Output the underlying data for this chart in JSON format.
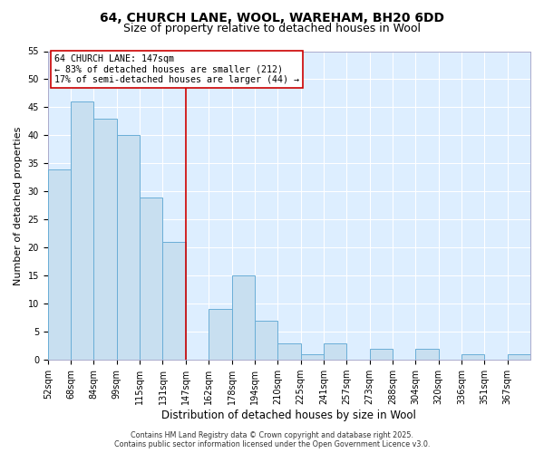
{
  "title": "64, CHURCH LANE, WOOL, WAREHAM, BH20 6DD",
  "subtitle": "Size of property relative to detached houses in Wool",
  "xlabel": "Distribution of detached houses by size in Wool",
  "ylabel": "Number of detached properties",
  "bar_labels": [
    "52sqm",
    "68sqm",
    "84sqm",
    "99sqm",
    "115sqm",
    "131sqm",
    "147sqm",
    "162sqm",
    "178sqm",
    "194sqm",
    "210sqm",
    "225sqm",
    "241sqm",
    "257sqm",
    "273sqm",
    "288sqm",
    "304sqm",
    "320sqm",
    "336sqm",
    "351sqm",
    "367sqm"
  ],
  "bar_heights": [
    34,
    46,
    43,
    40,
    29,
    21,
    0,
    9,
    15,
    7,
    3,
    1,
    3,
    0,
    2,
    0,
    2,
    0,
    1,
    0,
    1
  ],
  "bar_color": "#c8dff0",
  "bar_edge_color": "#6aaed6",
  "vline_x_index": 6,
  "vline_color": "#cc0000",
  "annotation_line1": "64 CHURCH LANE: 147sqm",
  "annotation_line2": "← 83% of detached houses are smaller (212)",
  "annotation_line3": "17% of semi-detached houses are larger (44) →",
  "annotation_box_color": "#ffffff",
  "annotation_box_edge": "#cc0000",
  "ylim": [
    0,
    55
  ],
  "yticks": [
    0,
    5,
    10,
    15,
    20,
    25,
    30,
    35,
    40,
    45,
    50,
    55
  ],
  "footer_line1": "Contains HM Land Registry data © Crown copyright and database right 2025.",
  "footer_line2": "Contains public sector information licensed under the Open Government Licence v3.0.",
  "fig_bg_color": "#ffffff",
  "plot_bg_color": "#ddeeff",
  "title_fontsize": 10,
  "subtitle_fontsize": 9,
  "tick_fontsize": 7,
  "xlabel_fontsize": 8.5,
  "ylabel_fontsize": 8
}
